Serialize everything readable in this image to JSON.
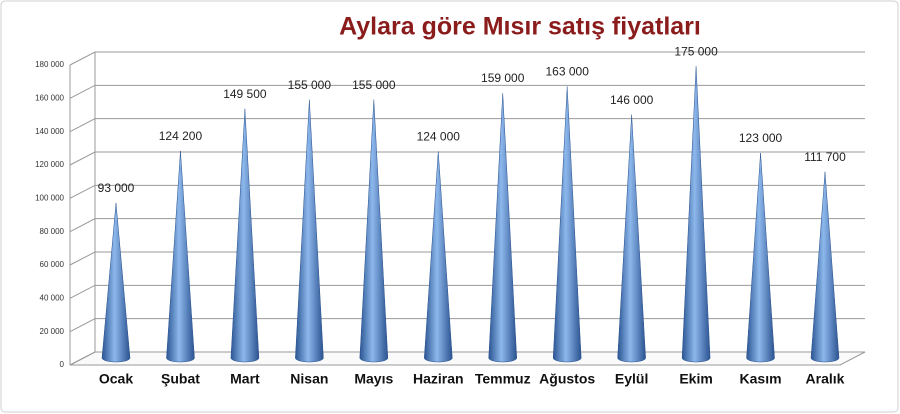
{
  "chart_data": {
    "type": "cone",
    "title": "Aylara göre Mısır satış fiyatları",
    "categories": [
      "Ocak",
      "Şubat",
      "Mart",
      "Nisan",
      "Mayıs",
      "Haziran",
      "Temmuz",
      "Ağustos",
      "Eylül",
      "Ekim",
      "Kasım",
      "Aralık"
    ],
    "values": [
      93000,
      124200,
      149500,
      155000,
      155000,
      124000,
      159000,
      163000,
      146000,
      175000,
      123000,
      111700
    ],
    "value_labels": [
      "93 000",
      "124 200",
      "149 500",
      "155 000",
      "155 000",
      "124 000",
      "159 000",
      "163 000",
      "146 000",
      "175 000",
      "123 000",
      "111 700"
    ],
    "color": "#4a7cc0",
    "ylim": [
      0,
      180000
    ],
    "yticks": [
      0,
      {
        "value": 20000,
        "label": "20 000"
      },
      {
        "value": 40000,
        "label": "40 000"
      },
      {
        "value": 60000,
        "label": "60 000"
      },
      {
        "value": 80000,
        "label": "80 000"
      },
      {
        "value": 100000,
        "label": "100 000"
      },
      {
        "value": 120000,
        "label": "120 000"
      },
      {
        "value": 140000,
        "label": "140 000"
      },
      {
        "value": 160000,
        "label": "160 000"
      },
      {
        "value": 180000,
        "label": "180 000"
      }
    ],
    "grid": true
  }
}
